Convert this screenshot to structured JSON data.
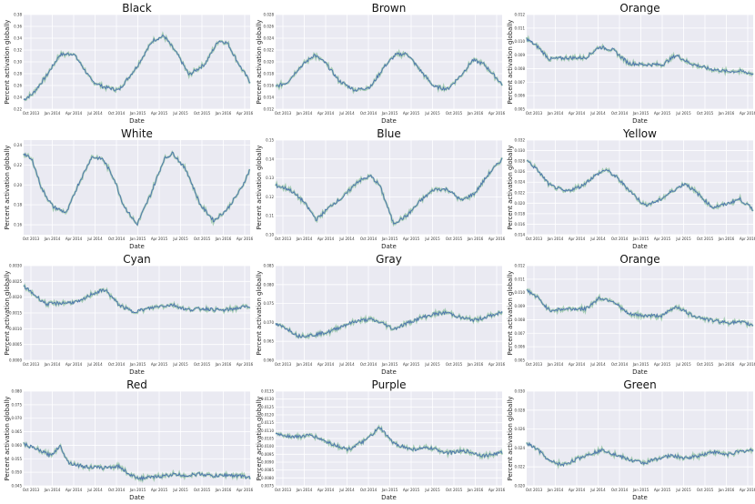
{
  "figure": {
    "x_ticks": [
      "Oct 2013",
      "Jan 2014",
      "Apr 2014",
      "Jul 2014",
      "Oct 2014",
      "Jan 2015",
      "Apr 2015",
      "Jul 2015",
      "Oct 2015",
      "Jan 2016",
      "Apr 2016"
    ],
    "xlabel": "Date",
    "ylabel": "Percent activation globally",
    "colors": {
      "background": "#eaeaf2",
      "grid": "#ffffff",
      "series_main": "#4c72b0",
      "series_band": "#55a868"
    }
  },
  "chart_data": [
    {
      "type": "line",
      "title": "Black",
      "x": [
        0,
        0.04,
        0.1,
        0.16,
        0.22,
        0.26,
        0.3,
        0.35,
        0.42,
        0.5,
        0.57,
        0.62,
        0.68,
        0.73,
        0.8,
        0.86,
        0.9,
        0.95,
        1
      ],
      "y": [
        0.236,
        0.246,
        0.276,
        0.312,
        0.314,
        0.292,
        0.268,
        0.258,
        0.252,
        0.292,
        0.336,
        0.344,
        0.312,
        0.278,
        0.296,
        0.336,
        0.332,
        0.296,
        0.266
      ],
      "ylim": [
        0.22,
        0.38
      ],
      "yticks": [
        "0.22",
        "0.24",
        "0.26",
        "0.28",
        "0.30",
        "0.32",
        "0.34",
        "0.36",
        "0.38"
      ]
    },
    {
      "type": "line",
      "title": "Brown",
      "x": [
        0,
        0.05,
        0.1,
        0.17,
        0.22,
        0.28,
        0.35,
        0.42,
        0.48,
        0.53,
        0.58,
        0.64,
        0.7,
        0.76,
        0.82,
        0.87,
        0.92,
        1
      ],
      "y": [
        0.0158,
        0.0165,
        0.0188,
        0.0212,
        0.0198,
        0.0168,
        0.0152,
        0.0158,
        0.0192,
        0.0212,
        0.0214,
        0.0185,
        0.0158,
        0.0154,
        0.0178,
        0.0203,
        0.0196,
        0.0162
      ],
      "ylim": [
        0.012,
        0.028
      ],
      "yticks": [
        "0.012",
        "0.014",
        "0.016",
        "0.018",
        "0.020",
        "0.022",
        "0.024",
        "0.026",
        "0.028"
      ]
    },
    {
      "type": "line",
      "title": "Orange",
      "x": [
        0,
        0.05,
        0.1,
        0.18,
        0.26,
        0.32,
        0.38,
        0.45,
        0.52,
        0.6,
        0.66,
        0.72,
        0.8,
        0.88,
        0.95,
        1
      ],
      "y": [
        0.0102,
        0.0096,
        0.0087,
        0.0088,
        0.0088,
        0.0096,
        0.0094,
        0.0084,
        0.0083,
        0.0083,
        0.009,
        0.0084,
        0.008,
        0.0078,
        0.0078,
        0.0076
      ],
      "ylim": [
        0.005,
        0.012
      ],
      "yticks": [
        "0.005",
        "0.006",
        "0.007",
        "0.008",
        "0.009",
        "0.010",
        "0.011",
        "0.012"
      ]
    },
    {
      "type": "line",
      "title": "White",
      "x": [
        0,
        0.04,
        0.08,
        0.13,
        0.19,
        0.24,
        0.3,
        0.35,
        0.4,
        0.44,
        0.5,
        0.56,
        0.62,
        0.66,
        0.72,
        0.78,
        0.84,
        0.9,
        0.96,
        1
      ],
      "y": [
        0.232,
        0.224,
        0.196,
        0.178,
        0.172,
        0.2,
        0.228,
        0.226,
        0.206,
        0.18,
        0.16,
        0.19,
        0.226,
        0.232,
        0.214,
        0.18,
        0.164,
        0.176,
        0.196,
        0.216
      ],
      "ylim": [
        0.15,
        0.245
      ],
      "yticks": [
        "0.16",
        "0.18",
        "0.20",
        "0.22",
        "0.24"
      ]
    },
    {
      "type": "line",
      "title": "Blue",
      "x": [
        0,
        0.06,
        0.12,
        0.18,
        0.25,
        0.3,
        0.36,
        0.42,
        0.46,
        0.52,
        0.58,
        0.64,
        0.7,
        0.76,
        0.82,
        0.88,
        0.94,
        1
      ],
      "y": [
        0.126,
        0.124,
        0.118,
        0.108,
        0.116,
        0.12,
        0.128,
        0.131,
        0.126,
        0.106,
        0.11,
        0.118,
        0.124,
        0.124,
        0.118,
        0.122,
        0.132,
        0.14
      ],
      "ylim": [
        0.1,
        0.15
      ],
      "yticks": [
        "0.10",
        "0.11",
        "0.12",
        "0.13",
        "0.14",
        "0.15"
      ]
    },
    {
      "type": "line",
      "title": "Yellow",
      "x": [
        0,
        0.05,
        0.1,
        0.17,
        0.24,
        0.3,
        0.35,
        0.4,
        0.45,
        0.52,
        0.58,
        0.64,
        0.7,
        0.76,
        0.82,
        0.88,
        0.94,
        1
      ],
      "y": [
        0.0282,
        0.0262,
        0.0235,
        0.0222,
        0.0232,
        0.0252,
        0.0264,
        0.0248,
        0.0226,
        0.0196,
        0.0204,
        0.0222,
        0.0238,
        0.0216,
        0.0192,
        0.0198,
        0.0208,
        0.0188
      ],
      "ylim": [
        0.014,
        0.032
      ],
      "yticks": [
        "0.014",
        "0.016",
        "0.018",
        "0.020",
        "0.022",
        "0.024",
        "0.026",
        "0.028",
        "0.030",
        "0.032"
      ]
    },
    {
      "type": "line",
      "title": "Cyan",
      "x": [
        0,
        0.04,
        0.1,
        0.18,
        0.25,
        0.3,
        0.36,
        0.42,
        0.48,
        0.54,
        0.6,
        0.66,
        0.72,
        0.8,
        0.88,
        0.95,
        1
      ],
      "y": [
        0.00235,
        0.00212,
        0.00178,
        0.00182,
        0.00186,
        0.0021,
        0.00224,
        0.00176,
        0.00154,
        0.00162,
        0.00172,
        0.00176,
        0.0016,
        0.00164,
        0.00158,
        0.00166,
        0.00172
      ],
      "ylim": [
        0.0,
        0.003
      ],
      "yticks": [
        "0.0000",
        "0.0005",
        "0.0010",
        "0.0015",
        "0.0020",
        "0.0025",
        "0.0030"
      ]
    },
    {
      "type": "line",
      "title": "Gray",
      "x": [
        0,
        0.05,
        0.1,
        0.17,
        0.24,
        0.3,
        0.36,
        0.42,
        0.48,
        0.52,
        0.58,
        0.64,
        0.7,
        0.76,
        0.82,
        0.88,
        0.94,
        1
      ],
      "y": [
        0.0695,
        0.0684,
        0.0664,
        0.0667,
        0.0676,
        0.0692,
        0.0704,
        0.0708,
        0.0696,
        0.0682,
        0.0698,
        0.0712,
        0.0722,
        0.0726,
        0.0712,
        0.0706,
        0.0716,
        0.0726
      ],
      "ylim": [
        0.06,
        0.085
      ],
      "yticks": [
        "0.060",
        "0.065",
        "0.070",
        "0.075",
        "0.080",
        "0.085"
      ]
    },
    {
      "type": "line",
      "title": "Orange",
      "x": [
        0,
        0.05,
        0.1,
        0.18,
        0.26,
        0.32,
        0.38,
        0.45,
        0.52,
        0.6,
        0.66,
        0.72,
        0.8,
        0.88,
        0.95,
        1
      ],
      "y": [
        0.0102,
        0.0096,
        0.0087,
        0.0088,
        0.0088,
        0.0096,
        0.0094,
        0.0084,
        0.0083,
        0.0083,
        0.009,
        0.0084,
        0.008,
        0.0078,
        0.0078,
        0.0076
      ],
      "ylim": [
        0.005,
        0.012
      ],
      "yticks": [
        "0.005",
        "0.006",
        "0.007",
        "0.008",
        "0.009",
        "0.010",
        "0.011",
        "0.012"
      ]
    },
    {
      "type": "line",
      "title": "Red",
      "x": [
        0,
        0.06,
        0.12,
        0.16,
        0.2,
        0.26,
        0.34,
        0.42,
        0.48,
        0.52,
        0.58,
        0.66,
        0.72,
        0.78,
        0.84,
        0.9,
        0.96,
        1
      ],
      "y": [
        0.0605,
        0.0584,
        0.0562,
        0.0598,
        0.0535,
        0.0522,
        0.0516,
        0.0522,
        0.0486,
        0.0478,
        0.0482,
        0.0492,
        0.0488,
        0.0494,
        0.0486,
        0.049,
        0.0486,
        0.048
      ],
      "ylim": [
        0.045,
        0.08
      ],
      "yticks": [
        "0.045",
        "0.050",
        "0.055",
        "0.060",
        "0.065",
        "0.070",
        "0.075",
        "0.080"
      ]
    },
    {
      "type": "line",
      "title": "Purple",
      "x": [
        0,
        0.08,
        0.16,
        0.24,
        0.32,
        0.4,
        0.46,
        0.52,
        0.6,
        0.68,
        0.76,
        0.84,
        0.92,
        1
      ],
      "y": [
        0.0108,
        0.0106,
        0.0107,
        0.0102,
        0.0098,
        0.0104,
        0.0112,
        0.0102,
        0.0098,
        0.0099,
        0.0096,
        0.0097,
        0.0094,
        0.0096
      ],
      "ylim": [
        0.0075,
        0.0135
      ],
      "yticks": [
        "0.0075",
        "0.0080",
        "0.0085",
        "0.0090",
        "0.0095",
        "0.0100",
        "0.0105",
        "0.0110",
        "0.0115",
        "0.0120",
        "0.0125",
        "0.0130",
        "0.0135"
      ]
    },
    {
      "type": "line",
      "title": "Green",
      "x": [
        0,
        0.05,
        0.1,
        0.16,
        0.22,
        0.28,
        0.34,
        0.4,
        0.46,
        0.52,
        0.58,
        0.64,
        0.7,
        0.76,
        0.82,
        0.88,
        0.94,
        1
      ],
      "y": [
        0.0245,
        0.0238,
        0.0226,
        0.0222,
        0.0228,
        0.0234,
        0.0238,
        0.0232,
        0.0227,
        0.0224,
        0.0229,
        0.0232,
        0.0229,
        0.0232,
        0.0236,
        0.0233,
        0.0236,
        0.0238
      ],
      "ylim": [
        0.02,
        0.03
      ],
      "yticks": [
        "0.020",
        "0.022",
        "0.024",
        "0.026",
        "0.028",
        "0.030"
      ]
    }
  ]
}
